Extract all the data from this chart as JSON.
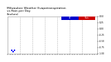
{
  "title": "Milwaukee Weather Evapotranspiration\nvs Rain per Day\n(Inches)",
  "title_fontsize": 3.2,
  "title_color": "#000000",
  "background_color": "#ffffff",
  "legend_et_color": "#0000cc",
  "legend_rain_color": "#cc0000",
  "legend_et_label": "ET",
  "legend_rain_label": "Rain",
  "scatter_red_color": "#ff0000",
  "scatter_black_color": "#000000",
  "scatter_blue_color": "#0000ff",
  "vline_color": "#b0b0b0",
  "vline_style": "--",
  "ylim": [
    -1.0,
    0.5
  ],
  "yticks": [
    -1.0,
    -0.75,
    -0.5,
    -0.25,
    0.0,
    0.25,
    0.5
  ],
  "tick_fontsize": 2.2,
  "num_years": 6,
  "num_vlines": 6,
  "vline_positions": [
    0.83,
    1.67,
    2.5,
    3.33,
    4.17,
    5.0
  ]
}
